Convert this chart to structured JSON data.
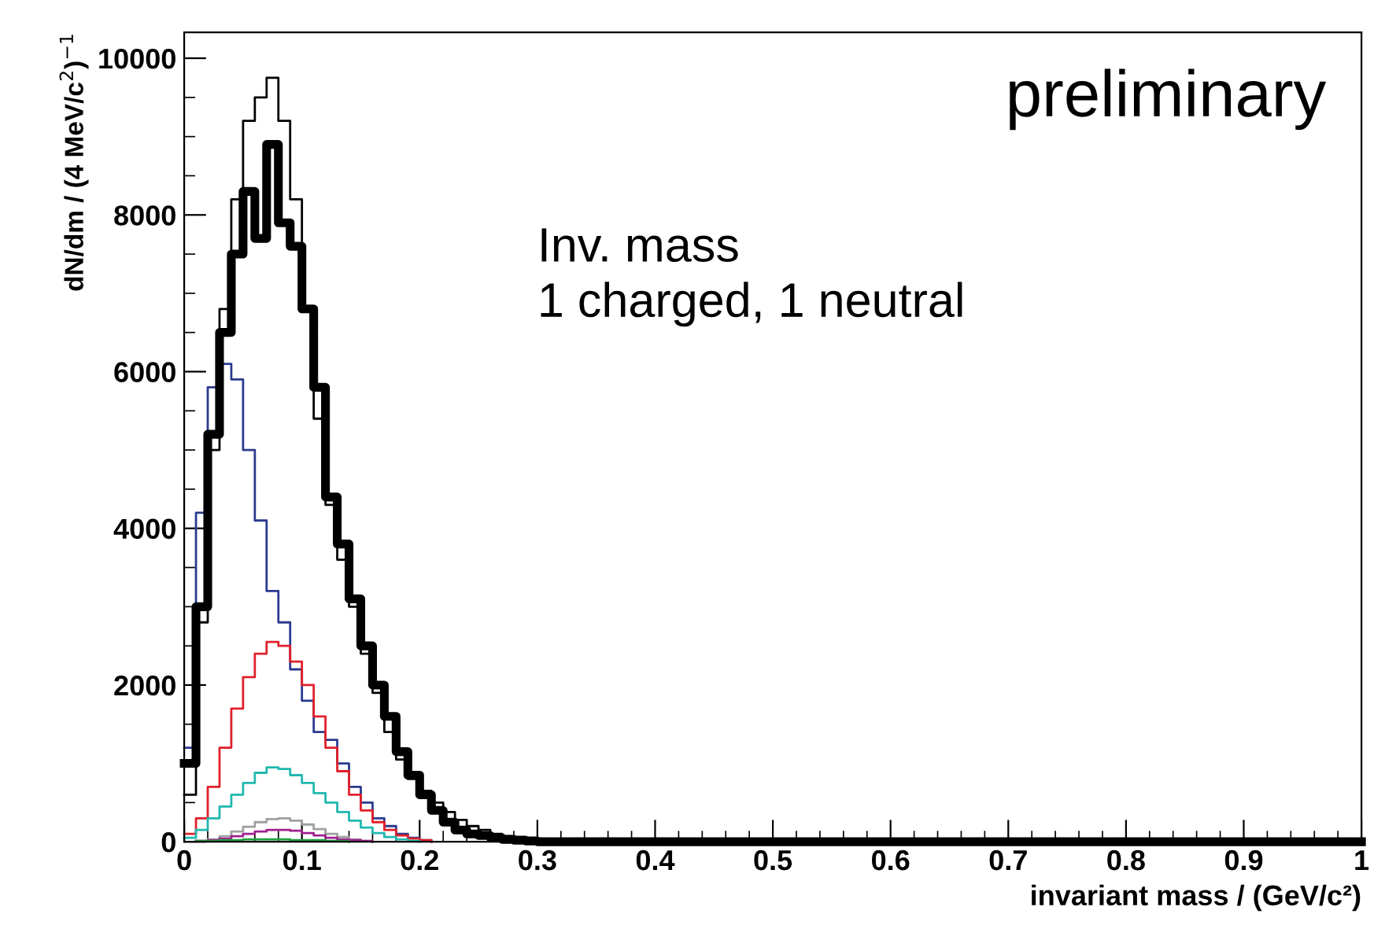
{
  "chart_data": {
    "type": "step",
    "xlabel": "invariant mass / (GeV/c²)",
    "ylabel": "dN/dm / (4 MeV/c$^{2}$)$^{−1}$",
    "annotations": [
      "preliminary",
      "Inv. mass\n1 charged, 1 neutral"
    ],
    "x": [
      0,
      0.01,
      0.02,
      0.03,
      0.04,
      0.05,
      0.06,
      0.07,
      0.08,
      0.09,
      0.1,
      0.11,
      0.12,
      0.13,
      0.14,
      0.15,
      0.16,
      0.17,
      0.18,
      0.19,
      0.2,
      0.21,
      0.22,
      0.23,
      0.24,
      0.25,
      0.26,
      0.27,
      0.28,
      0.29,
      0.3,
      0.31,
      0.32,
      0.33,
      0.34,
      0.35,
      1.0
    ],
    "series": [
      {
        "color": "#000000",
        "values": [
          600,
          2800,
          5000,
          6800,
          8200,
          9200,
          9500,
          9750,
          9200,
          8200,
          6800,
          5400,
          4300,
          3600,
          3000,
          2400,
          1900,
          1400,
          1050,
          800,
          650,
          500,
          380,
          280,
          200,
          150,
          100,
          70,
          40,
          20,
          10,
          0,
          0,
          0,
          0,
          0,
          0
        ]
      },
      {
        "color": "#2b3a8f",
        "x": [
          0,
          0.01,
          0.02,
          0.03,
          0.04,
          0.05,
          0.06,
          0.07,
          0.08,
          0.09,
          0.1,
          0.11,
          0.12,
          0.13,
          0.14,
          0.15,
          0.16,
          0.17,
          0.18,
          0.19,
          0.2,
          0.21
        ],
        "values": [
          1200,
          4200,
          5800,
          6100,
          5900,
          5000,
          4100,
          3200,
          2800,
          2200,
          1800,
          1400,
          1300,
          1000,
          700,
          500,
          300,
          200,
          100,
          50,
          20,
          0
        ]
      },
      {
        "color": "#e0202a",
        "x": [
          0,
          0.01,
          0.02,
          0.03,
          0.04,
          0.05,
          0.06,
          0.07,
          0.08,
          0.09,
          0.1,
          0.11,
          0.12,
          0.13,
          0.14,
          0.15,
          0.16,
          0.17,
          0.18,
          0.19,
          0.2,
          0.21
        ],
        "values": [
          100,
          300,
          700,
          1200,
          1700,
          2100,
          2400,
          2550,
          2500,
          2300,
          2000,
          1600,
          1200,
          900,
          600,
          400,
          250,
          150,
          80,
          40,
          20,
          0
        ]
      },
      {
        "color": "#20b8b0",
        "x": [
          0,
          0.01,
          0.02,
          0.03,
          0.04,
          0.05,
          0.06,
          0.07,
          0.08,
          0.09,
          0.1,
          0.11,
          0.12,
          0.13,
          0.14,
          0.15,
          0.16,
          0.17,
          0.18,
          0.19,
          0.2
        ],
        "values": [
          50,
          150,
          300,
          450,
          600,
          750,
          880,
          950,
          930,
          850,
          750,
          620,
          500,
          380,
          270,
          180,
          110,
          60,
          30,
          10,
          0
        ]
      },
      {
        "color": "#a0a0a0",
        "x": [
          0.01,
          0.02,
          0.03,
          0.04,
          0.05,
          0.06,
          0.07,
          0.08,
          0.09,
          0.1,
          0.11,
          0.12,
          0.13,
          0.14,
          0.15,
          0.16
        ],
        "values": [
          10,
          30,
          70,
          130,
          190,
          250,
          290,
          300,
          270,
          220,
          160,
          100,
          60,
          30,
          10,
          0
        ]
      },
      {
        "color": "#a0208f",
        "x": [
          0.01,
          0.02,
          0.03,
          0.04,
          0.05,
          0.06,
          0.07,
          0.08,
          0.09,
          0.1,
          0.11,
          0.12,
          0.13,
          0.14,
          0.15,
          0.16
        ],
        "values": [
          10,
          20,
          40,
          70,
          100,
          130,
          150,
          150,
          140,
          110,
          80,
          50,
          30,
          20,
          10,
          0
        ]
      },
      {
        "color": "#20a040",
        "x": [
          0.01,
          0.02,
          0.03,
          0.04,
          0.05,
          0.06,
          0.07,
          0.08,
          0.09,
          0.1,
          0.11,
          0.12,
          0.13,
          0.14
        ],
        "values": [
          10,
          10,
          20,
          20,
          30,
          30,
          30,
          30,
          20,
          20,
          20,
          10,
          10,
          0
        ]
      },
      {
        "color": "#000000",
        "values": [
          1000,
          3000,
          5200,
          6500,
          7500,
          8300,
          7700,
          8900,
          7900,
          7600,
          6800,
          5800,
          4400,
          3800,
          3100,
          2500,
          2000,
          1600,
          1150,
          850,
          600,
          400,
          250,
          150,
          100,
          80,
          50,
          30,
          20,
          10,
          0,
          0,
          0,
          0,
          0,
          0,
          0
        ]
      }
    ],
    "xlim": [
      0,
      1
    ],
    "xticks": [
      0,
      0.1,
      0.2,
      0.3,
      0.4,
      0.5,
      0.6,
      0.7,
      0.8,
      0.9,
      1
    ],
    "ylim": [
      0,
      10330
    ],
    "yticks": [
      0,
      2000,
      4000,
      6000,
      8000,
      10000
    ],
    "grid": false,
    "legend": false
  }
}
